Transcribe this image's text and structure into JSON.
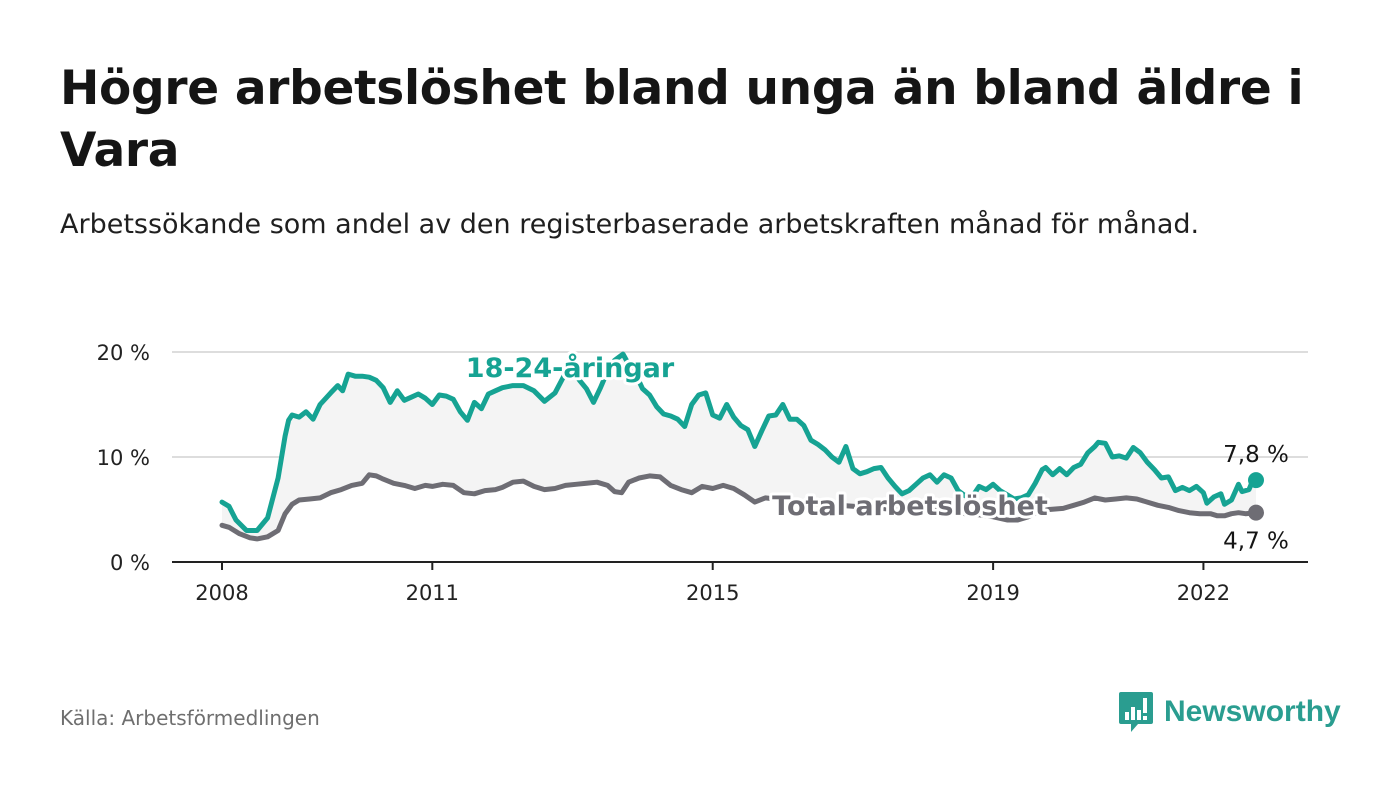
{
  "title": "Högre arbetslöshet bland unga än bland äldre i Vara",
  "subtitle": "Arbetssökande som andel av den registerbaserade arbetskraften månad för månad.",
  "source": "Källa: Arbetsförmedlingen",
  "brand": {
    "name": "Newsworthy",
    "icon": "newsworthy-logo-icon",
    "color": "#2a9d90"
  },
  "colors": {
    "youth": "#16a393",
    "total": "#6e6d74",
    "band": "#f4f4f4",
    "grid": "#dddddd",
    "axis": "#222222"
  },
  "chart_data": {
    "type": "line",
    "title": "Högre arbetslöshet bland unga än bland äldre i Vara",
    "xlabel": "",
    "ylabel": "",
    "x_range": [
      2008.0,
      2022.75
    ],
    "ylim": [
      0,
      20
    ],
    "y_ticks": [
      0,
      10,
      20
    ],
    "y_tick_labels": [
      "0 %",
      "10 %",
      "20 %"
    ],
    "x_ticks": [
      2008,
      2011,
      2015,
      2019,
      2022
    ],
    "x_tick_labels": [
      "2008",
      "2011",
      "2015",
      "2019",
      "2022"
    ],
    "grid": "horizontal",
    "series": [
      {
        "name": "18-24-åringar",
        "label": "18-24-åringar",
        "end_label": "7,8 %",
        "color": "#16a393",
        "points": [
          [
            2008.0,
            5.7
          ],
          [
            2008.1,
            5.3
          ],
          [
            2008.2,
            4.0
          ],
          [
            2008.35,
            3.0
          ],
          [
            2008.5,
            3.0
          ],
          [
            2008.65,
            4.2
          ],
          [
            2008.8,
            8.0
          ],
          [
            2008.9,
            12.0
          ],
          [
            2008.95,
            13.5
          ],
          [
            2009.0,
            14.0
          ],
          [
            2009.1,
            13.8
          ],
          [
            2009.2,
            14.3
          ],
          [
            2009.3,
            13.6
          ],
          [
            2009.4,
            15.0
          ],
          [
            2009.55,
            16.1
          ],
          [
            2009.65,
            16.8
          ],
          [
            2009.72,
            16.3
          ],
          [
            2009.8,
            17.9
          ],
          [
            2009.9,
            17.7
          ],
          [
            2010.0,
            17.7
          ],
          [
            2010.1,
            17.6
          ],
          [
            2010.2,
            17.3
          ],
          [
            2010.3,
            16.6
          ],
          [
            2010.4,
            15.2
          ],
          [
            2010.5,
            16.3
          ],
          [
            2010.6,
            15.4
          ],
          [
            2010.7,
            15.7
          ],
          [
            2010.8,
            16.0
          ],
          [
            2010.9,
            15.6
          ],
          [
            2011.0,
            15.0
          ],
          [
            2011.1,
            15.9
          ],
          [
            2011.2,
            15.8
          ],
          [
            2011.3,
            15.5
          ],
          [
            2011.4,
            14.3
          ],
          [
            2011.5,
            13.5
          ],
          [
            2011.6,
            15.2
          ],
          [
            2011.7,
            14.6
          ],
          [
            2011.8,
            16.0
          ],
          [
            2011.9,
            16.3
          ],
          [
            2012.0,
            16.6
          ],
          [
            2012.15,
            16.8
          ],
          [
            2012.3,
            16.8
          ],
          [
            2012.45,
            16.3
          ],
          [
            2012.6,
            15.3
          ],
          [
            2012.75,
            16.1
          ],
          [
            2012.9,
            18.0
          ],
          [
            2013.0,
            18.3
          ],
          [
            2013.1,
            17.3
          ],
          [
            2013.2,
            16.5
          ],
          [
            2013.3,
            15.2
          ],
          [
            2013.4,
            16.6
          ],
          [
            2013.5,
            18.2
          ],
          [
            2013.6,
            19.2
          ],
          [
            2013.72,
            19.8
          ],
          [
            2013.82,
            18.6
          ],
          [
            2013.9,
            17.9
          ],
          [
            2014.0,
            16.5
          ],
          [
            2014.1,
            15.9
          ],
          [
            2014.2,
            14.8
          ],
          [
            2014.3,
            14.1
          ],
          [
            2014.4,
            13.9
          ],
          [
            2014.5,
            13.6
          ],
          [
            2014.6,
            12.9
          ],
          [
            2014.7,
            15.0
          ],
          [
            2014.8,
            15.9
          ],
          [
            2014.9,
            16.1
          ],
          [
            2015.0,
            14.0
          ],
          [
            2015.1,
            13.7
          ],
          [
            2015.2,
            15.0
          ],
          [
            2015.3,
            13.8
          ],
          [
            2015.4,
            13.0
          ],
          [
            2015.5,
            12.6
          ],
          [
            2015.6,
            11.0
          ],
          [
            2015.7,
            12.5
          ],
          [
            2015.8,
            13.9
          ],
          [
            2015.9,
            14.0
          ],
          [
            2016.0,
            15.0
          ],
          [
            2016.1,
            13.6
          ],
          [
            2016.2,
            13.6
          ],
          [
            2016.3,
            13.0
          ],
          [
            2016.4,
            11.6
          ],
          [
            2016.5,
            11.2
          ],
          [
            2016.6,
            10.7
          ],
          [
            2016.7,
            10.0
          ],
          [
            2016.8,
            9.5
          ],
          [
            2016.9,
            11.0
          ],
          [
            2017.0,
            8.9
          ],
          [
            2017.1,
            8.4
          ],
          [
            2017.2,
            8.6
          ],
          [
            2017.3,
            8.9
          ],
          [
            2017.4,
            9.0
          ],
          [
            2017.5,
            8.0
          ],
          [
            2017.6,
            7.2
          ],
          [
            2017.7,
            6.5
          ],
          [
            2017.8,
            6.8
          ],
          [
            2017.9,
            7.4
          ],
          [
            2018.0,
            8.0
          ],
          [
            2018.1,
            8.3
          ],
          [
            2018.2,
            7.6
          ],
          [
            2018.3,
            8.3
          ],
          [
            2018.4,
            8.0
          ],
          [
            2018.5,
            6.8
          ],
          [
            2018.6,
            6.3
          ],
          [
            2018.7,
            6.2
          ],
          [
            2018.8,
            7.2
          ],
          [
            2018.9,
            6.9
          ],
          [
            2019.0,
            7.4
          ],
          [
            2019.1,
            6.8
          ],
          [
            2019.2,
            6.4
          ],
          [
            2019.3,
            6.0
          ],
          [
            2019.4,
            6.1
          ],
          [
            2019.5,
            6.4
          ],
          [
            2019.6,
            7.5
          ],
          [
            2019.7,
            8.8
          ],
          [
            2019.75,
            9.0
          ],
          [
            2019.85,
            8.3
          ],
          [
            2019.95,
            8.9
          ],
          [
            2020.05,
            8.3
          ],
          [
            2020.15,
            9.0
          ],
          [
            2020.25,
            9.3
          ],
          [
            2020.35,
            10.4
          ],
          [
            2020.45,
            11.0
          ],
          [
            2020.5,
            11.4
          ],
          [
            2020.6,
            11.3
          ],
          [
            2020.7,
            10.0
          ],
          [
            2020.8,
            10.1
          ],
          [
            2020.9,
            9.9
          ],
          [
            2021.0,
            10.9
          ],
          [
            2021.1,
            10.4
          ],
          [
            2021.2,
            9.5
          ],
          [
            2021.3,
            8.8
          ],
          [
            2021.4,
            8.0
          ],
          [
            2021.5,
            8.1
          ],
          [
            2021.6,
            6.8
          ],
          [
            2021.7,
            7.1
          ],
          [
            2021.8,
            6.8
          ],
          [
            2021.9,
            7.2
          ],
          [
            2022.0,
            6.6
          ],
          [
            2022.05,
            5.6
          ],
          [
            2022.15,
            6.2
          ],
          [
            2022.25,
            6.5
          ],
          [
            2022.3,
            5.5
          ],
          [
            2022.4,
            5.9
          ],
          [
            2022.5,
            7.4
          ],
          [
            2022.55,
            6.7
          ],
          [
            2022.65,
            6.9
          ],
          [
            2022.7,
            7.7
          ],
          [
            2022.75,
            7.8
          ]
        ]
      },
      {
        "name": "Total arbetslöshet",
        "label": "Total arbetslöshet",
        "end_label": "4,7 %",
        "color": "#6e6d74",
        "points": [
          [
            2008.0,
            3.5
          ],
          [
            2008.1,
            3.3
          ],
          [
            2008.25,
            2.7
          ],
          [
            2008.4,
            2.3
          ],
          [
            2008.5,
            2.2
          ],
          [
            2008.65,
            2.4
          ],
          [
            2008.8,
            3.0
          ],
          [
            2008.9,
            4.6
          ],
          [
            2009.0,
            5.5
          ],
          [
            2009.1,
            5.9
          ],
          [
            2009.25,
            6.0
          ],
          [
            2009.4,
            6.1
          ],
          [
            2009.55,
            6.6
          ],
          [
            2009.7,
            6.9
          ],
          [
            2009.85,
            7.3
          ],
          [
            2010.0,
            7.5
          ],
          [
            2010.1,
            8.3
          ],
          [
            2010.2,
            8.2
          ],
          [
            2010.3,
            7.9
          ],
          [
            2010.45,
            7.5
          ],
          [
            2010.6,
            7.3
          ],
          [
            2010.75,
            7.0
          ],
          [
            2010.9,
            7.3
          ],
          [
            2011.0,
            7.2
          ],
          [
            2011.15,
            7.4
          ],
          [
            2011.3,
            7.3
          ],
          [
            2011.45,
            6.6
          ],
          [
            2011.6,
            6.5
          ],
          [
            2011.75,
            6.8
          ],
          [
            2011.9,
            6.9
          ],
          [
            2012.0,
            7.1
          ],
          [
            2012.15,
            7.6
          ],
          [
            2012.3,
            7.7
          ],
          [
            2012.45,
            7.2
          ],
          [
            2012.6,
            6.9
          ],
          [
            2012.75,
            7.0
          ],
          [
            2012.9,
            7.3
          ],
          [
            2013.05,
            7.4
          ],
          [
            2013.2,
            7.5
          ],
          [
            2013.35,
            7.6
          ],
          [
            2013.5,
            7.3
          ],
          [
            2013.6,
            6.7
          ],
          [
            2013.7,
            6.6
          ],
          [
            2013.8,
            7.6
          ],
          [
            2013.95,
            8.0
          ],
          [
            2014.1,
            8.2
          ],
          [
            2014.25,
            8.1
          ],
          [
            2014.4,
            7.3
          ],
          [
            2014.55,
            6.9
          ],
          [
            2014.7,
            6.6
          ],
          [
            2014.85,
            7.2
          ],
          [
            2015.0,
            7.0
          ],
          [
            2015.15,
            7.3
          ],
          [
            2015.3,
            7.0
          ],
          [
            2015.45,
            6.4
          ],
          [
            2015.6,
            5.7
          ],
          [
            2015.75,
            6.1
          ],
          [
            2015.9,
            6.0
          ],
          [
            2016.05,
            6.0
          ],
          [
            2016.2,
            5.8
          ],
          [
            2016.4,
            5.5
          ],
          [
            2016.6,
            5.5
          ],
          [
            2016.8,
            5.4
          ],
          [
            2017.0,
            5.3
          ],
          [
            2017.2,
            5.2
          ],
          [
            2017.4,
            5.1
          ],
          [
            2017.6,
            5.0
          ],
          [
            2017.8,
            5.0
          ],
          [
            2018.0,
            5.0
          ],
          [
            2018.2,
            4.9
          ],
          [
            2018.4,
            4.8
          ],
          [
            2018.6,
            4.6
          ],
          [
            2018.8,
            4.5
          ],
          [
            2019.0,
            4.3
          ],
          [
            2019.2,
            4.0
          ],
          [
            2019.35,
            4.0
          ],
          [
            2019.5,
            4.3
          ],
          [
            2019.65,
            4.8
          ],
          [
            2019.8,
            5.0
          ],
          [
            2020.0,
            5.1
          ],
          [
            2020.15,
            5.4
          ],
          [
            2020.3,
            5.7
          ],
          [
            2020.45,
            6.1
          ],
          [
            2020.6,
            5.9
          ],
          [
            2020.75,
            6.0
          ],
          [
            2020.9,
            6.1
          ],
          [
            2021.05,
            6.0
          ],
          [
            2021.2,
            5.7
          ],
          [
            2021.35,
            5.4
          ],
          [
            2021.5,
            5.2
          ],
          [
            2021.65,
            4.9
          ],
          [
            2021.8,
            4.7
          ],
          [
            2021.95,
            4.6
          ],
          [
            2022.1,
            4.6
          ],
          [
            2022.2,
            4.4
          ],
          [
            2022.3,
            4.4
          ],
          [
            2022.4,
            4.6
          ],
          [
            2022.5,
            4.7
          ],
          [
            2022.6,
            4.6
          ],
          [
            2022.75,
            4.7
          ]
        ]
      }
    ],
    "annotations": [
      {
        "text": "18-24-åringar",
        "series": "18-24-åringar"
      },
      {
        "text": "Total arbetslöshet",
        "series": "Total arbetslöshet"
      }
    ]
  }
}
